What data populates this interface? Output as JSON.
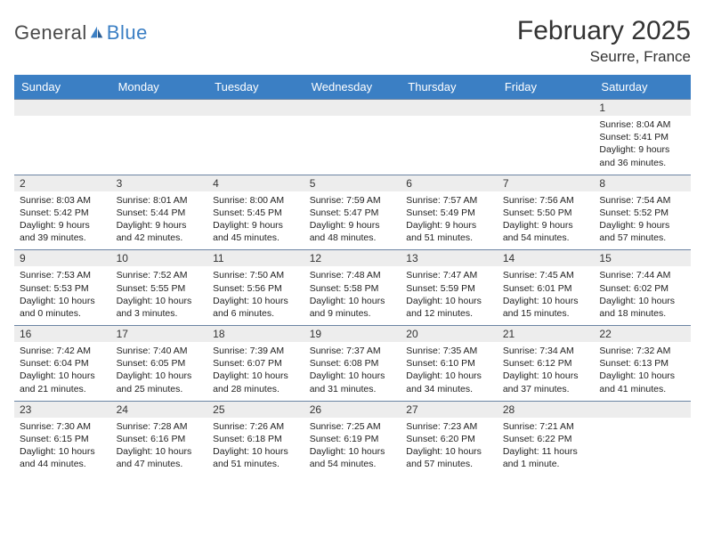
{
  "brand": {
    "part1": "General",
    "part2": "Blue"
  },
  "title": "February 2025",
  "location": "Seurre, France",
  "colors": {
    "header_bg": "#3b7fc4",
    "header_text": "#ffffff",
    "daynum_bg": "#ededed",
    "week_border": "#6b84a3",
    "text": "#222222",
    "page_bg": "#ffffff",
    "brand_gray": "#4a4a4a",
    "brand_blue": "#3b7fc4"
  },
  "fonts": {
    "title_size": 30,
    "location_size": 17,
    "header_size": 13,
    "cell_size": 10.5
  },
  "day_names": [
    "Sunday",
    "Monday",
    "Tuesday",
    "Wednesday",
    "Thursday",
    "Friday",
    "Saturday"
  ],
  "weeks": [
    [
      {
        "day": "",
        "sunrise": "",
        "sunset": "",
        "daylight": ""
      },
      {
        "day": "",
        "sunrise": "",
        "sunset": "",
        "daylight": ""
      },
      {
        "day": "",
        "sunrise": "",
        "sunset": "",
        "daylight": ""
      },
      {
        "day": "",
        "sunrise": "",
        "sunset": "",
        "daylight": ""
      },
      {
        "day": "",
        "sunrise": "",
        "sunset": "",
        "daylight": ""
      },
      {
        "day": "",
        "sunrise": "",
        "sunset": "",
        "daylight": ""
      },
      {
        "day": "1",
        "sunrise": "Sunrise: 8:04 AM",
        "sunset": "Sunset: 5:41 PM",
        "daylight": "Daylight: 9 hours and 36 minutes."
      }
    ],
    [
      {
        "day": "2",
        "sunrise": "Sunrise: 8:03 AM",
        "sunset": "Sunset: 5:42 PM",
        "daylight": "Daylight: 9 hours and 39 minutes."
      },
      {
        "day": "3",
        "sunrise": "Sunrise: 8:01 AM",
        "sunset": "Sunset: 5:44 PM",
        "daylight": "Daylight: 9 hours and 42 minutes."
      },
      {
        "day": "4",
        "sunrise": "Sunrise: 8:00 AM",
        "sunset": "Sunset: 5:45 PM",
        "daylight": "Daylight: 9 hours and 45 minutes."
      },
      {
        "day": "5",
        "sunrise": "Sunrise: 7:59 AM",
        "sunset": "Sunset: 5:47 PM",
        "daylight": "Daylight: 9 hours and 48 minutes."
      },
      {
        "day": "6",
        "sunrise": "Sunrise: 7:57 AM",
        "sunset": "Sunset: 5:49 PM",
        "daylight": "Daylight: 9 hours and 51 minutes."
      },
      {
        "day": "7",
        "sunrise": "Sunrise: 7:56 AM",
        "sunset": "Sunset: 5:50 PM",
        "daylight": "Daylight: 9 hours and 54 minutes."
      },
      {
        "day": "8",
        "sunrise": "Sunrise: 7:54 AM",
        "sunset": "Sunset: 5:52 PM",
        "daylight": "Daylight: 9 hours and 57 minutes."
      }
    ],
    [
      {
        "day": "9",
        "sunrise": "Sunrise: 7:53 AM",
        "sunset": "Sunset: 5:53 PM",
        "daylight": "Daylight: 10 hours and 0 minutes."
      },
      {
        "day": "10",
        "sunrise": "Sunrise: 7:52 AM",
        "sunset": "Sunset: 5:55 PM",
        "daylight": "Daylight: 10 hours and 3 minutes."
      },
      {
        "day": "11",
        "sunrise": "Sunrise: 7:50 AM",
        "sunset": "Sunset: 5:56 PM",
        "daylight": "Daylight: 10 hours and 6 minutes."
      },
      {
        "day": "12",
        "sunrise": "Sunrise: 7:48 AM",
        "sunset": "Sunset: 5:58 PM",
        "daylight": "Daylight: 10 hours and 9 minutes."
      },
      {
        "day": "13",
        "sunrise": "Sunrise: 7:47 AM",
        "sunset": "Sunset: 5:59 PM",
        "daylight": "Daylight: 10 hours and 12 minutes."
      },
      {
        "day": "14",
        "sunrise": "Sunrise: 7:45 AM",
        "sunset": "Sunset: 6:01 PM",
        "daylight": "Daylight: 10 hours and 15 minutes."
      },
      {
        "day": "15",
        "sunrise": "Sunrise: 7:44 AM",
        "sunset": "Sunset: 6:02 PM",
        "daylight": "Daylight: 10 hours and 18 minutes."
      }
    ],
    [
      {
        "day": "16",
        "sunrise": "Sunrise: 7:42 AM",
        "sunset": "Sunset: 6:04 PM",
        "daylight": "Daylight: 10 hours and 21 minutes."
      },
      {
        "day": "17",
        "sunrise": "Sunrise: 7:40 AM",
        "sunset": "Sunset: 6:05 PM",
        "daylight": "Daylight: 10 hours and 25 minutes."
      },
      {
        "day": "18",
        "sunrise": "Sunrise: 7:39 AM",
        "sunset": "Sunset: 6:07 PM",
        "daylight": "Daylight: 10 hours and 28 minutes."
      },
      {
        "day": "19",
        "sunrise": "Sunrise: 7:37 AM",
        "sunset": "Sunset: 6:08 PM",
        "daylight": "Daylight: 10 hours and 31 minutes."
      },
      {
        "day": "20",
        "sunrise": "Sunrise: 7:35 AM",
        "sunset": "Sunset: 6:10 PM",
        "daylight": "Daylight: 10 hours and 34 minutes."
      },
      {
        "day": "21",
        "sunrise": "Sunrise: 7:34 AM",
        "sunset": "Sunset: 6:12 PM",
        "daylight": "Daylight: 10 hours and 37 minutes."
      },
      {
        "day": "22",
        "sunrise": "Sunrise: 7:32 AM",
        "sunset": "Sunset: 6:13 PM",
        "daylight": "Daylight: 10 hours and 41 minutes."
      }
    ],
    [
      {
        "day": "23",
        "sunrise": "Sunrise: 7:30 AM",
        "sunset": "Sunset: 6:15 PM",
        "daylight": "Daylight: 10 hours and 44 minutes."
      },
      {
        "day": "24",
        "sunrise": "Sunrise: 7:28 AM",
        "sunset": "Sunset: 6:16 PM",
        "daylight": "Daylight: 10 hours and 47 minutes."
      },
      {
        "day": "25",
        "sunrise": "Sunrise: 7:26 AM",
        "sunset": "Sunset: 6:18 PM",
        "daylight": "Daylight: 10 hours and 51 minutes."
      },
      {
        "day": "26",
        "sunrise": "Sunrise: 7:25 AM",
        "sunset": "Sunset: 6:19 PM",
        "daylight": "Daylight: 10 hours and 54 minutes."
      },
      {
        "day": "27",
        "sunrise": "Sunrise: 7:23 AM",
        "sunset": "Sunset: 6:20 PM",
        "daylight": "Daylight: 10 hours and 57 minutes."
      },
      {
        "day": "28",
        "sunrise": "Sunrise: 7:21 AM",
        "sunset": "Sunset: 6:22 PM",
        "daylight": "Daylight: 11 hours and 1 minute."
      },
      {
        "day": "",
        "sunrise": "",
        "sunset": "",
        "daylight": ""
      }
    ]
  ]
}
